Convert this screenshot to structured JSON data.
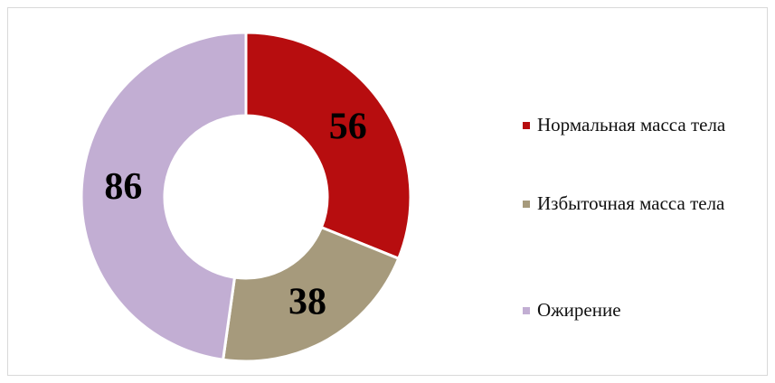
{
  "chart_data": {
    "type": "doughnut",
    "categories": [
      "Нормальная масса тела",
      "Избыточная масса тела",
      "Ожирение"
    ],
    "values": [
      56,
      38,
      86
    ],
    "colors": [
      "#b70d0f",
      "#a69a7c",
      "#c2aed3"
    ],
    "legend": "right"
  }
}
